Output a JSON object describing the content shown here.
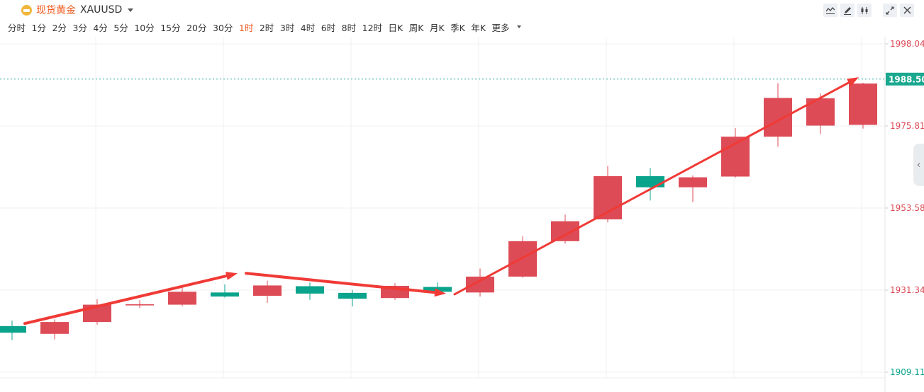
{
  "header": {
    "symbol_name": "现货黄金",
    "symbol_code": "XAUUSD",
    "coin_icon": "gold-coin-icon",
    "tools": [
      "line-chart-icon",
      "draw-pen-icon",
      "candlestick-icon",
      "fullscreen-icon",
      "close-icon"
    ]
  },
  "periods": {
    "items": [
      "分时",
      "1分",
      "2分",
      "3分",
      "4分",
      "5分",
      "10分",
      "15分",
      "20分",
      "30分",
      "1时",
      "2时",
      "3时",
      "4时",
      "6时",
      "8时",
      "12时",
      "日K",
      "周K",
      "月K",
      "季K",
      "年K"
    ],
    "active": "1时",
    "more_label": "更多"
  },
  "colors": {
    "up": "#dd4b56",
    "down": "#0aa38c",
    "arrow": "#f03a36",
    "accent": "#f25a1e"
  },
  "chart_data": {
    "type": "candlestick",
    "price_axis_ticks": [
      1998.04,
      1975.81,
      1953.58,
      1931.34,
      1909.11
    ],
    "ylim": [
      1909.11,
      1998.04
    ],
    "current_price": 1988.5,
    "current_price_label": "1988.50",
    "candles": [
      {
        "open": 1921.6,
        "close": 1919.8,
        "high": 1923.1,
        "low": 1917.8
      },
      {
        "open": 1919.5,
        "close": 1922.7,
        "high": 1923.4,
        "low": 1918.0
      },
      {
        "open": 1922.7,
        "close": 1927.4,
        "high": 1928.9,
        "low": 1922.0
      },
      {
        "open": 1927.2,
        "close": 1927.5,
        "high": 1928.6,
        "low": 1926.5
      },
      {
        "open": 1927.4,
        "close": 1930.9,
        "high": 1932.0,
        "low": 1926.9
      },
      {
        "open": 1930.7,
        "close": 1929.6,
        "high": 1932.9,
        "low": 1929.3
      },
      {
        "open": 1929.8,
        "close": 1932.6,
        "high": 1933.9,
        "low": 1927.9
      },
      {
        "open": 1932.4,
        "close": 1930.4,
        "high": 1933.4,
        "low": 1928.7
      },
      {
        "open": 1930.6,
        "close": 1929.0,
        "high": 1931.4,
        "low": 1926.9
      },
      {
        "open": 1929.2,
        "close": 1932.5,
        "high": 1933.2,
        "low": 1928.7
      },
      {
        "open": 1932.2,
        "close": 1930.9,
        "high": 1933.4,
        "low": 1930.2
      },
      {
        "open": 1930.7,
        "close": 1935.0,
        "high": 1937.2,
        "low": 1929.6
      },
      {
        "open": 1935.0,
        "close": 1944.6,
        "high": 1945.9,
        "low": 1934.7
      },
      {
        "open": 1944.6,
        "close": 1950.0,
        "high": 1951.8,
        "low": 1943.9
      },
      {
        "open": 1950.5,
        "close": 1962.2,
        "high": 1965.0,
        "low": 1949.7
      },
      {
        "open": 1962.2,
        "close": 1959.2,
        "high": 1964.4,
        "low": 1955.6
      },
      {
        "open": 1959.2,
        "close": 1961.9,
        "high": 1962.4,
        "low": 1955.2
      },
      {
        "open": 1962.1,
        "close": 1972.9,
        "high": 1975.2,
        "low": 1961.8
      },
      {
        "open": 1972.9,
        "close": 1983.4,
        "high": 1987.4,
        "low": 1970.2
      },
      {
        "open": 1975.9,
        "close": 1983.3,
        "high": 1984.6,
        "low": 1973.6
      },
      {
        "open": 1976.1,
        "close": 1987.3,
        "high": 1987.5,
        "low": 1975.1
      }
    ],
    "trend_arrows": [
      {
        "from": {
          "candle": 0.3,
          "price": 1922.3
        },
        "to": {
          "candle": 5.3,
          "price": 1935.9
        },
        "style": "arrow"
      },
      {
        "from": {
          "candle": 5.5,
          "price": 1935.9
        },
        "to": {
          "candle": 10.2,
          "price": 1930.4
        },
        "style": "arrow"
      },
      {
        "from": {
          "candle": 10.4,
          "price": 1930.2
        },
        "to": {
          "candle": 19.9,
          "price": 1989.0
        },
        "style": "arrow"
      }
    ]
  }
}
